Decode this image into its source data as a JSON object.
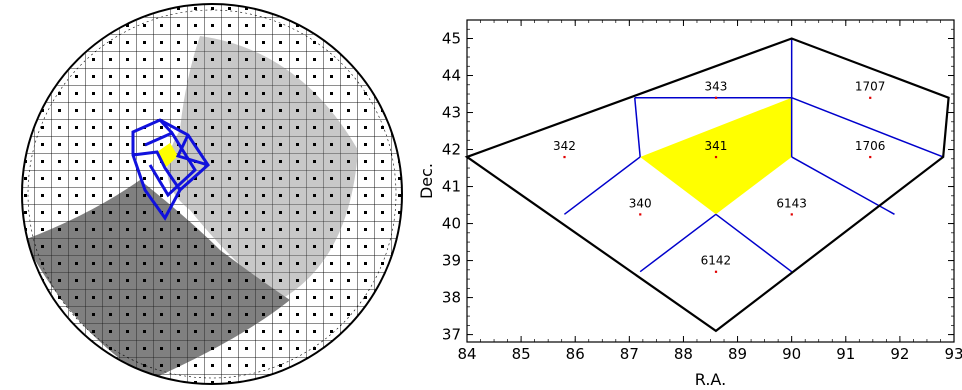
{
  "colors": {
    "highlight": "#ffff00",
    "pixel_edge_inner": "#0000cc",
    "pixel_edge_outer": "#000000",
    "center_dot": "#e00000",
    "sphere_face_light": "#c8c8c8",
    "sphere_face_dark": "#808080"
  },
  "sphere": {
    "description_icon": "healpix-sphere-icon"
  },
  "chart_data": {
    "type": "diagram",
    "xlabel": "R.A.",
    "ylabel": "Dec.",
    "xlim": [
      84,
      93
    ],
    "ylim": [
      36.8,
      45.5
    ],
    "x_ticks": [
      84,
      85,
      86,
      87,
      88,
      89,
      90,
      91,
      92,
      93
    ],
    "y_ticks": [
      37,
      38,
      39,
      40,
      41,
      42,
      43,
      44,
      45
    ],
    "outer_boundary": [
      [
        84.0,
        41.8
      ],
      [
        90.0,
        45.0
      ],
      [
        92.9,
        43.4
      ],
      [
        92.8,
        41.8
      ],
      [
        88.6,
        37.1
      ]
    ],
    "inner_edges": [
      [
        [
          87.1,
          43.4
        ],
        [
          90.0,
          43.4
        ]
      ],
      [
        [
          90.0,
          43.4
        ],
        [
          92.8,
          41.8
        ]
      ],
      [
        [
          87.1,
          43.4
        ],
        [
          87.2,
          41.8
        ]
      ],
      [
        [
          90.0,
          45.0
        ],
        [
          90.0,
          43.4
        ]
      ],
      [
        [
          90.0,
          43.4
        ],
        [
          90.0,
          41.8
        ]
      ],
      [
        [
          85.8,
          40.25
        ],
        [
          87.2,
          41.8
        ]
      ],
      [
        [
          90.0,
          41.8
        ],
        [
          91.9,
          40.25
        ]
      ],
      [
        [
          87.2,
          38.7
        ],
        [
          88.6,
          40.25
        ]
      ],
      [
        [
          88.6,
          40.25
        ],
        [
          90.0,
          38.7
        ]
      ]
    ],
    "highlight_polygon": [
      [
        87.2,
        41.8
      ],
      [
        90.0,
        43.4
      ],
      [
        90.0,
        41.8
      ],
      [
        88.6,
        40.25
      ]
    ],
    "pixels": [
      {
        "label": "343",
        "x": 88.6,
        "y": 43.4
      },
      {
        "label": "1707",
        "x": 91.45,
        "y": 43.4
      },
      {
        "label": "342",
        "x": 85.8,
        "y": 41.8
      },
      {
        "label": "341",
        "x": 88.6,
        "y": 41.8
      },
      {
        "label": "1706",
        "x": 91.45,
        "y": 41.8
      },
      {
        "label": "340",
        "x": 87.2,
        "y": 40.25
      },
      {
        "label": "6143",
        "x": 90.0,
        "y": 40.25
      },
      {
        "label": "6142",
        "x": 88.6,
        "y": 38.7
      }
    ]
  }
}
